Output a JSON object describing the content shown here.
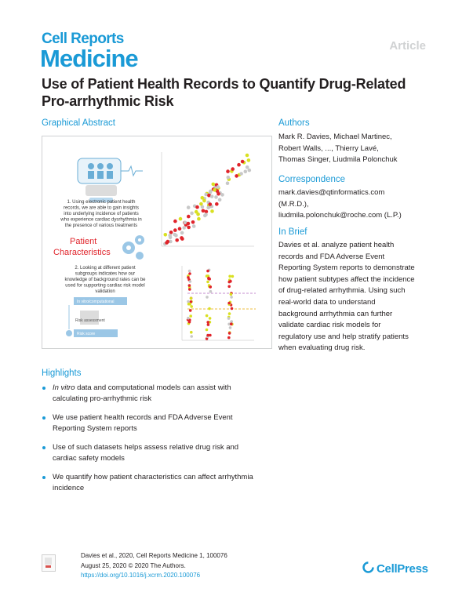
{
  "header": {
    "journal_top": "Cell Reports",
    "journal_main": "Medicine",
    "article_type": "Article"
  },
  "title": "Use of Patient Health Records to Quantify Drug-Related Pro-arrhythmic Risk",
  "graphical_abstract": {
    "heading": "Graphical Abstract",
    "step1": [
      "1. Using electronic patient health",
      "records, we are able to gain insights",
      "into underlying incidence of patients",
      "who experience cardiac dysrhythmia in",
      "the presence of various treatments"
    ],
    "patient_label_1": "Patient",
    "patient_label_2": "Characteristics",
    "step2": [
      "2. Looking at different patient",
      "subgroups indicates how our",
      "knowledge of background rates can be",
      "used for supporting cardiac risk model",
      "validation"
    ],
    "flow_boxes": [
      "In vitro/computational",
      "Risk assessment",
      "Risk score"
    ],
    "colors": {
      "accent": "#1a9ad6",
      "red": "#e0242b",
      "yellow": "#d9e021",
      "gray": "#c8c8c8"
    }
  },
  "authors": {
    "heading": "Authors",
    "lines": [
      "Mark R. Davies, Michael Martinec,",
      "Robert Walls, ..., Thierry Lavé,",
      "Thomas Singer, Liudmila Polonchuk"
    ]
  },
  "correspondence": {
    "heading": "Correspondence",
    "lines": [
      "mark.davies@qtinformatics.com",
      "(M.R.D.),",
      "liudmila.polonchuk@roche.com (L.P.)"
    ]
  },
  "in_brief": {
    "heading": "In Brief",
    "lines": [
      "Davies et al. analyze patient health",
      "records and FDA Adverse Event",
      "Reporting System reports to demonstrate",
      "how patient subtypes affect the incidence",
      "of drug-related arrhythmia. Using such",
      "real-world data to understand",
      "background arrhythmia can further",
      "validate cardiac risk models for",
      "regulatory use and help stratify patients",
      "when evaluating drug risk."
    ]
  },
  "highlights": {
    "heading": "Highlights",
    "items": [
      {
        "italic": "In vitro",
        "lines": [
          " data and computational models can assist with",
          "calculating pro-arrhythmic risk"
        ]
      },
      {
        "italic": "",
        "lines": [
          "We use patient health records and FDA Adverse Event",
          "Reporting System reports"
        ]
      },
      {
        "italic": "",
        "lines": [
          "Use of such datasets helps assess relative drug risk and",
          "cardiac safety models"
        ]
      },
      {
        "italic": "",
        "lines": [
          "We quantify how patient characteristics can affect arrhythmia",
          "incidence"
        ]
      }
    ]
  },
  "footer": {
    "line1": "Davies et al., 2020, Cell Reports Medicine 1, 100076",
    "line2": "August 25, 2020 © 2020 The Authors.",
    "doi": "https://doi.org/10.1016/j.xcrm.2020.100076",
    "publisher": "CellPress"
  }
}
